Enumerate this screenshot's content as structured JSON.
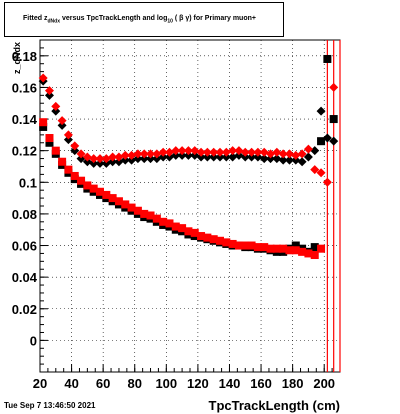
{
  "title": {
    "prefix": "Fitted  z",
    "sub1": "dNdx",
    "middle": "  versus TpcTrackLength and log",
    "sub2": "10",
    "suffix": " ( β γ) for Primary muon+"
  },
  "timestamp": "Tue Sep  7 13:46:50 2021",
  "chart_data": {
    "type": "scatter",
    "title": "Fitted z_dNdx versus TpcTrackLength and log10(βγ) for Primary muon+",
    "xlabel": "TpcTrackLength (cm)",
    "ylabel": "z_dNdx",
    "xlim": [
      20,
      210
    ],
    "ylim": [
      -0.02,
      0.19
    ],
    "x_ticks": [
      20,
      40,
      60,
      80,
      100,
      120,
      140,
      160,
      180,
      200
    ],
    "y_ticks": [
      0,
      0.02,
      0.04,
      0.06,
      0.08,
      0.1,
      0.12,
      0.14,
      0.16,
      0.18
    ],
    "x_tick_labels": [
      "20",
      "40",
      "60",
      "80",
      "100",
      "120",
      "140",
      "160",
      "180",
      "200"
    ],
    "y_tick_labels": [
      "0",
      "0.02",
      "0.04",
      "0.06",
      "0.08",
      "0.1",
      "0.12",
      "0.14",
      "0.16",
      "0.18"
    ],
    "grid": true,
    "vertical_lines": [
      {
        "x": 202,
        "color": "#ff0000"
      },
      {
        "x": 206,
        "color": "#ff0000"
      },
      {
        "x": 210,
        "color": "#ff0000"
      }
    ],
    "series": [
      {
        "color": "#000000",
        "marker": "diamond",
        "x": [
          22,
          26,
          30,
          34,
          38,
          42,
          46,
          50,
          54,
          58,
          62,
          66,
          70,
          74,
          78,
          82,
          86,
          90,
          94,
          98,
          102,
          106,
          110,
          114,
          118,
          122,
          126,
          130,
          134,
          138,
          142,
          146,
          150,
          154,
          158,
          162,
          166,
          170,
          174,
          178,
          182,
          186,
          190,
          194,
          198,
          202,
          206
        ],
        "y": [
          0.164,
          0.155,
          0.145,
          0.136,
          0.127,
          0.12,
          0.115,
          0.113,
          0.112,
          0.112,
          0.112,
          0.113,
          0.113,
          0.114,
          0.114,
          0.115,
          0.115,
          0.115,
          0.115,
          0.116,
          0.116,
          0.117,
          0.117,
          0.117,
          0.117,
          0.116,
          0.116,
          0.116,
          0.116,
          0.116,
          0.116,
          0.117,
          0.116,
          0.116,
          0.116,
          0.115,
          0.115,
          0.115,
          0.114,
          0.114,
          0.114,
          0.113,
          0.116,
          0.12,
          0.145,
          0.128,
          0.126
        ]
      },
      {
        "color": "#ff0000",
        "marker": "diamond",
        "x": [
          22,
          26,
          30,
          34,
          38,
          42,
          46,
          50,
          54,
          58,
          62,
          66,
          70,
          74,
          78,
          82,
          86,
          90,
          94,
          98,
          102,
          106,
          110,
          114,
          118,
          122,
          126,
          130,
          134,
          138,
          142,
          146,
          150,
          154,
          158,
          162,
          166,
          170,
          174,
          178,
          182,
          186,
          190,
          194,
          198,
          202,
          206
        ],
        "y": [
          0.166,
          0.158,
          0.148,
          0.139,
          0.13,
          0.123,
          0.118,
          0.116,
          0.115,
          0.115,
          0.115,
          0.116,
          0.116,
          0.117,
          0.117,
          0.118,
          0.118,
          0.118,
          0.118,
          0.119,
          0.119,
          0.12,
          0.12,
          0.12,
          0.12,
          0.119,
          0.119,
          0.119,
          0.119,
          0.119,
          0.12,
          0.12,
          0.119,
          0.119,
          0.119,
          0.119,
          0.118,
          0.119,
          0.118,
          0.118,
          0.117,
          0.118,
          0.121,
          0.108,
          0.106,
          0.1,
          0.16
        ]
      },
      {
        "color": "#000000",
        "marker": "square",
        "x": [
          22,
          26,
          30,
          34,
          38,
          42,
          46,
          50,
          54,
          58,
          62,
          66,
          70,
          74,
          78,
          82,
          86,
          90,
          94,
          98,
          102,
          106,
          110,
          114,
          118,
          122,
          126,
          130,
          134,
          138,
          142,
          146,
          150,
          154,
          158,
          162,
          166,
          170,
          174,
          178,
          182,
          186,
          190,
          194,
          198,
          202,
          206
        ],
        "y": [
          0.135,
          0.125,
          0.118,
          0.111,
          0.106,
          0.102,
          0.099,
          0.096,
          0.094,
          0.092,
          0.09,
          0.088,
          0.086,
          0.084,
          0.082,
          0.08,
          0.078,
          0.077,
          0.075,
          0.073,
          0.072,
          0.07,
          0.069,
          0.067,
          0.066,
          0.065,
          0.064,
          0.063,
          0.062,
          0.061,
          0.06,
          0.06,
          0.059,
          0.059,
          0.058,
          0.058,
          0.057,
          0.056,
          0.056,
          0.058,
          0.06,
          0.058,
          0.056,
          0.059,
          0.126,
          0.178,
          0.14
        ]
      },
      {
        "color": "#ff0000",
        "marker": "square",
        "x": [
          22,
          26,
          30,
          34,
          38,
          42,
          46,
          50,
          54,
          58,
          62,
          66,
          70,
          74,
          78,
          82,
          86,
          90,
          94,
          98,
          102,
          106,
          110,
          114,
          118,
          122,
          126,
          130,
          134,
          138,
          142,
          146,
          150,
          154,
          158,
          162,
          166,
          170,
          174,
          178,
          182,
          186,
          190,
          194,
          198
        ],
        "y": [
          0.138,
          0.128,
          0.12,
          0.113,
          0.108,
          0.104,
          0.101,
          0.098,
          0.096,
          0.094,
          0.092,
          0.09,
          0.088,
          0.086,
          0.084,
          0.082,
          0.08,
          0.079,
          0.077,
          0.075,
          0.074,
          0.072,
          0.071,
          0.069,
          0.068,
          0.066,
          0.065,
          0.064,
          0.063,
          0.062,
          0.061,
          0.06,
          0.06,
          0.06,
          0.059,
          0.059,
          0.058,
          0.058,
          0.058,
          0.057,
          0.057,
          0.056,
          0.055,
          0.054,
          0.058
        ]
      }
    ]
  }
}
